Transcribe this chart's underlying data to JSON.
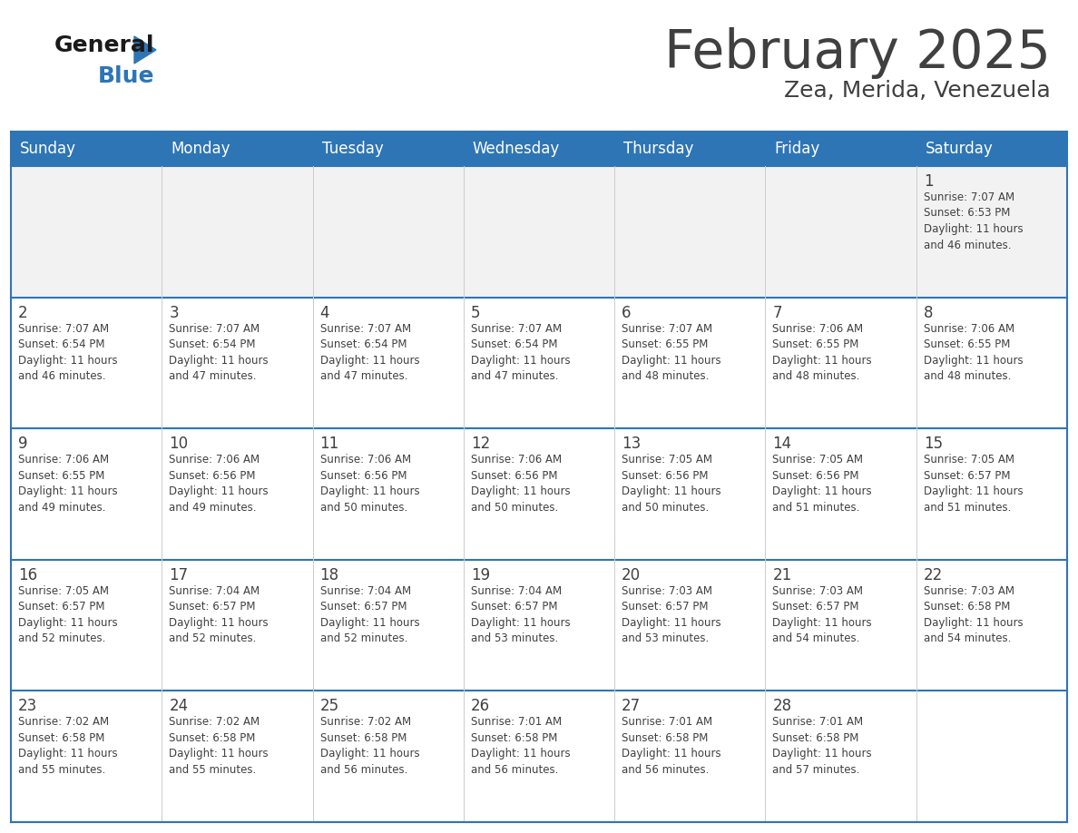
{
  "title": "February 2025",
  "subtitle": "Zea, Merida, Venezuela",
  "header_color": "#2E75B6",
  "header_text_color": "#FFFFFF",
  "bg_color": "#FFFFFF",
  "alt_row_color": "#F2F2F2",
  "cell_border_color": "#2E75B6",
  "text_color": "#404040",
  "days_of_week": [
    "Sunday",
    "Monday",
    "Tuesday",
    "Wednesday",
    "Thursday",
    "Friday",
    "Saturday"
  ],
  "calendar": [
    [
      {
        "day": null,
        "info": ""
      },
      {
        "day": null,
        "info": ""
      },
      {
        "day": null,
        "info": ""
      },
      {
        "day": null,
        "info": ""
      },
      {
        "day": null,
        "info": ""
      },
      {
        "day": null,
        "info": ""
      },
      {
        "day": 1,
        "info": "Sunrise: 7:07 AM\nSunset: 6:53 PM\nDaylight: 11 hours\nand 46 minutes."
      }
    ],
    [
      {
        "day": 2,
        "info": "Sunrise: 7:07 AM\nSunset: 6:54 PM\nDaylight: 11 hours\nand 46 minutes."
      },
      {
        "day": 3,
        "info": "Sunrise: 7:07 AM\nSunset: 6:54 PM\nDaylight: 11 hours\nand 47 minutes."
      },
      {
        "day": 4,
        "info": "Sunrise: 7:07 AM\nSunset: 6:54 PM\nDaylight: 11 hours\nand 47 minutes."
      },
      {
        "day": 5,
        "info": "Sunrise: 7:07 AM\nSunset: 6:54 PM\nDaylight: 11 hours\nand 47 minutes."
      },
      {
        "day": 6,
        "info": "Sunrise: 7:07 AM\nSunset: 6:55 PM\nDaylight: 11 hours\nand 48 minutes."
      },
      {
        "day": 7,
        "info": "Sunrise: 7:06 AM\nSunset: 6:55 PM\nDaylight: 11 hours\nand 48 minutes."
      },
      {
        "day": 8,
        "info": "Sunrise: 7:06 AM\nSunset: 6:55 PM\nDaylight: 11 hours\nand 48 minutes."
      }
    ],
    [
      {
        "day": 9,
        "info": "Sunrise: 7:06 AM\nSunset: 6:55 PM\nDaylight: 11 hours\nand 49 minutes."
      },
      {
        "day": 10,
        "info": "Sunrise: 7:06 AM\nSunset: 6:56 PM\nDaylight: 11 hours\nand 49 minutes."
      },
      {
        "day": 11,
        "info": "Sunrise: 7:06 AM\nSunset: 6:56 PM\nDaylight: 11 hours\nand 50 minutes."
      },
      {
        "day": 12,
        "info": "Sunrise: 7:06 AM\nSunset: 6:56 PM\nDaylight: 11 hours\nand 50 minutes."
      },
      {
        "day": 13,
        "info": "Sunrise: 7:05 AM\nSunset: 6:56 PM\nDaylight: 11 hours\nand 50 minutes."
      },
      {
        "day": 14,
        "info": "Sunrise: 7:05 AM\nSunset: 6:56 PM\nDaylight: 11 hours\nand 51 minutes."
      },
      {
        "day": 15,
        "info": "Sunrise: 7:05 AM\nSunset: 6:57 PM\nDaylight: 11 hours\nand 51 minutes."
      }
    ],
    [
      {
        "day": 16,
        "info": "Sunrise: 7:05 AM\nSunset: 6:57 PM\nDaylight: 11 hours\nand 52 minutes."
      },
      {
        "day": 17,
        "info": "Sunrise: 7:04 AM\nSunset: 6:57 PM\nDaylight: 11 hours\nand 52 minutes."
      },
      {
        "day": 18,
        "info": "Sunrise: 7:04 AM\nSunset: 6:57 PM\nDaylight: 11 hours\nand 52 minutes."
      },
      {
        "day": 19,
        "info": "Sunrise: 7:04 AM\nSunset: 6:57 PM\nDaylight: 11 hours\nand 53 minutes."
      },
      {
        "day": 20,
        "info": "Sunrise: 7:03 AM\nSunset: 6:57 PM\nDaylight: 11 hours\nand 53 minutes."
      },
      {
        "day": 21,
        "info": "Sunrise: 7:03 AM\nSunset: 6:57 PM\nDaylight: 11 hours\nand 54 minutes."
      },
      {
        "day": 22,
        "info": "Sunrise: 7:03 AM\nSunset: 6:58 PM\nDaylight: 11 hours\nand 54 minutes."
      }
    ],
    [
      {
        "day": 23,
        "info": "Sunrise: 7:02 AM\nSunset: 6:58 PM\nDaylight: 11 hours\nand 55 minutes."
      },
      {
        "day": 24,
        "info": "Sunrise: 7:02 AM\nSunset: 6:58 PM\nDaylight: 11 hours\nand 55 minutes."
      },
      {
        "day": 25,
        "info": "Sunrise: 7:02 AM\nSunset: 6:58 PM\nDaylight: 11 hours\nand 56 minutes."
      },
      {
        "day": 26,
        "info": "Sunrise: 7:01 AM\nSunset: 6:58 PM\nDaylight: 11 hours\nand 56 minutes."
      },
      {
        "day": 27,
        "info": "Sunrise: 7:01 AM\nSunset: 6:58 PM\nDaylight: 11 hours\nand 56 minutes."
      },
      {
        "day": 28,
        "info": "Sunrise: 7:01 AM\nSunset: 6:58 PM\nDaylight: 11 hours\nand 57 minutes."
      },
      {
        "day": null,
        "info": ""
      }
    ]
  ],
  "logo_general_color": "#1a1a1a",
  "logo_blue_color": "#2E75B6",
  "logo_triangle_color": "#2E75B6"
}
